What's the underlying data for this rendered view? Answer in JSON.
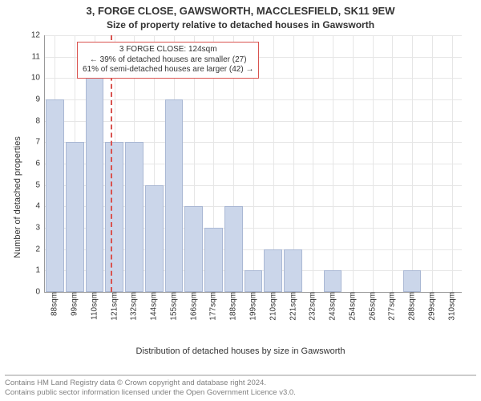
{
  "chart": {
    "type": "bar",
    "title_line1": "3, FORGE CLOSE, GAWSWORTH, MACCLESFIELD, SK11 9EW",
    "title_line2": "Size of property relative to detached houses in Gawsworth",
    "title_fontsize": 13,
    "subtitle_fontsize": 12,
    "ylabel": "Number of detached properties",
    "xlabel": "Distribution of detached houses by size in Gawsworth",
    "label_fontsize": 11,
    "tick_fontsize": 10,
    "ylim": [
      0,
      12
    ],
    "ytick_step": 1,
    "categories": [
      "88sqm",
      "99sqm",
      "110sqm",
      "121sqm",
      "132sqm",
      "144sqm",
      "155sqm",
      "166sqm",
      "177sqm",
      "188sqm",
      "199sqm",
      "210sqm",
      "221sqm",
      "232sqm",
      "243sqm",
      "254sqm",
      "265sqm",
      "277sqm",
      "288sqm",
      "299sqm",
      "310sqm"
    ],
    "values": [
      9,
      7,
      10,
      7,
      7,
      5,
      9,
      4,
      3,
      4,
      1,
      2,
      2,
      0,
      1,
      0,
      0,
      0,
      1,
      0,
      0
    ],
    "bar_color": "#cbd6ea",
    "bar_border_color": "#aab8d4",
    "bar_width": 0.92,
    "background_color": "#ffffff",
    "grid_color": "#e6e6e6",
    "axis_color": "#999999",
    "marker_line": {
      "index": 3.3,
      "color": "#d9534f",
      "style": "dashed"
    },
    "annotation": {
      "line1": "3 FORGE CLOSE: 124sqm",
      "line2": "← 39% of detached houses are smaller (27)",
      "line3": "61% of semi-detached houses are larger (42) →",
      "border_color": "#d9534f",
      "fontsize": 10
    }
  },
  "footer": {
    "line1": "Contains HM Land Registry data © Crown copyright and database right 2024.",
    "line2": "Contains public sector information licensed under the Open Government Licence v3.0.",
    "fontsize": 9.5,
    "color": "#808080"
  }
}
